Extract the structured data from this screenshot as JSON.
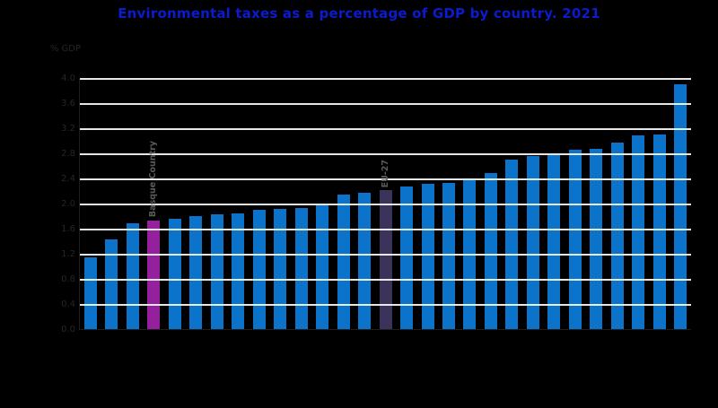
{
  "background": "#000000",
  "title": {
    "text": "Environmental taxes as a percentage of GDP by country. 2021",
    "color": "#0a1ccd"
  },
  "axis": {
    "unit_label": "% GDP",
    "y_ticks": [
      "0.0",
      "0.4",
      "0.8",
      "1.2",
      "1.6",
      "2.0",
      "2.4",
      "2.8",
      "3.2",
      "3.6",
      "4.0"
    ],
    "tick_color": "#262626",
    "grid_color": "rgba(255,255,255,0.9)",
    "x_tick_labels_visible": false
  },
  "chart_data": {
    "type": "bar",
    "title": "Environmental taxes as a percentage of GDP by country. 2021",
    "ylabel": "% GDP",
    "ylim": [
      0,
      4.0
    ],
    "y_tick_step": 0.4,
    "grid": true,
    "legend": false,
    "bar_count": 29,
    "bar_color": "#0b73c9",
    "values": [
      1.16,
      1.45,
      1.7,
      1.75,
      1.77,
      1.81,
      1.85,
      1.86,
      1.91,
      1.93,
      1.95,
      1.99,
      2.16,
      2.18,
      2.23,
      2.28,
      2.33,
      2.35,
      2.42,
      2.5,
      2.72,
      2.77,
      2.79,
      2.87,
      2.89,
      2.99,
      3.1,
      3.12,
      3.91
    ],
    "highlights": [
      {
        "index": 3,
        "label": "Basque Country",
        "color": "#95209e"
      },
      {
        "index": 14,
        "label": "EU-27",
        "color": "#3b3359"
      }
    ],
    "annotation_color": "#5a5a5a"
  }
}
